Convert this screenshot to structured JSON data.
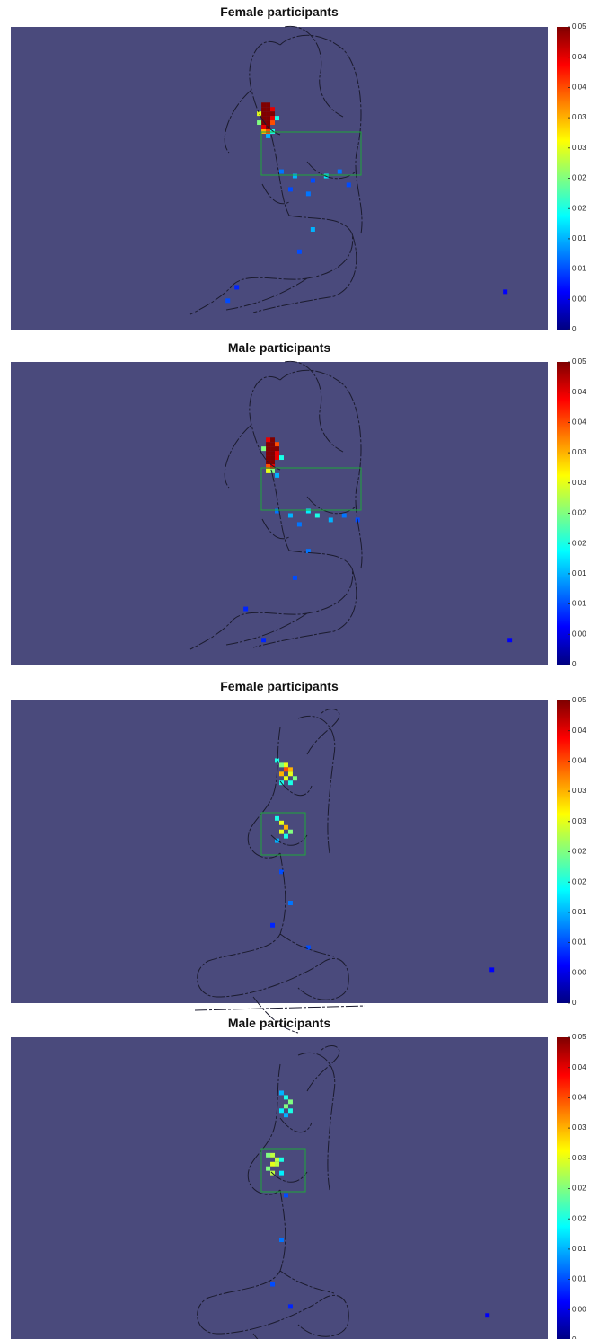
{
  "chart_data": [
    {
      "type": "heatmap",
      "title": "Female participants",
      "colormap": "jet",
      "background_color": "#4a4a7c",
      "xlim": [
        0,
        120
      ],
      "ylim": [
        68,
        0
      ],
      "clim": [
        0,
        0.05
      ],
      "cticks": [
        0,
        {
          "value": 0.005,
          "label": "0.00"
        },
        0.01,
        {
          "value": 0.015,
          "label": "0.01"
        },
        0.02,
        {
          "value": 0.025,
          "label": "0.02"
        },
        0.03,
        {
          "value": 0.035,
          "label": "0.03"
        },
        0.04,
        {
          "value": 0.045,
          "label": "0.04"
        },
        0.05
      ],
      "cells": [
        [
          56,
          17,
          0.05
        ],
        [
          57,
          17,
          0.05
        ],
        [
          56,
          18,
          0.05
        ],
        [
          57,
          18,
          0.05
        ],
        [
          58,
          18,
          0.045
        ],
        [
          56,
          19,
          0.05
        ],
        [
          57,
          19,
          0.05
        ],
        [
          58,
          19,
          0.05
        ],
        [
          56,
          20,
          0.05
        ],
        [
          57,
          20,
          0.05
        ],
        [
          58,
          20,
          0.045
        ],
        [
          56,
          21,
          0.05
        ],
        [
          57,
          21,
          0.05
        ],
        [
          58,
          21,
          0.04
        ],
        [
          56,
          22,
          0.045
        ],
        [
          57,
          22,
          0.05
        ],
        [
          56,
          23,
          0.035
        ],
        [
          57,
          23,
          0.04
        ],
        [
          55,
          19,
          0.03
        ],
        [
          55,
          21,
          0.025
        ],
        [
          59,
          20,
          0.02
        ],
        [
          58,
          23,
          0.02
        ],
        [
          57,
          24,
          0.015
        ],
        [
          60,
          32,
          0.012
        ],
        [
          63,
          33,
          0.015
        ],
        [
          67,
          34,
          0.01
        ],
        [
          70,
          33,
          0.018
        ],
        [
          73,
          32,
          0.012
        ],
        [
          75,
          35,
          0.01
        ],
        [
          66,
          37,
          0.012
        ],
        [
          62,
          36,
          0.01
        ],
        [
          67,
          45,
          0.015
        ],
        [
          64,
          50,
          0.01
        ],
        [
          50,
          58,
          0.008
        ],
        [
          48,
          61,
          0.01
        ],
        [
          110,
          59,
          0.006
        ]
      ]
    },
    {
      "type": "heatmap",
      "title": "Male participants",
      "colormap": "jet",
      "background_color": "#4a4a7c",
      "xlim": [
        0,
        120
      ],
      "ylim": [
        68,
        0
      ],
      "clim": [
        0,
        0.05
      ],
      "cticks": [
        0,
        {
          "value": 0.005,
          "label": "0.00"
        },
        0.01,
        {
          "value": 0.015,
          "label": "0.01"
        },
        0.02,
        {
          "value": 0.025,
          "label": "0.02"
        },
        0.03,
        {
          "value": 0.035,
          "label": "0.03"
        },
        0.04,
        {
          "value": 0.045,
          "label": "0.04"
        },
        0.05
      ],
      "cells": [
        [
          57,
          17,
          0.045
        ],
        [
          58,
          17,
          0.05
        ],
        [
          57,
          18,
          0.05
        ],
        [
          58,
          18,
          0.05
        ],
        [
          59,
          18,
          0.04
        ],
        [
          57,
          19,
          0.05
        ],
        [
          58,
          19,
          0.05
        ],
        [
          59,
          19,
          0.05
        ],
        [
          57,
          20,
          0.05
        ],
        [
          58,
          20,
          0.05
        ],
        [
          59,
          20,
          0.045
        ],
        [
          57,
          21,
          0.05
        ],
        [
          58,
          21,
          0.05
        ],
        [
          59,
          21,
          0.045
        ],
        [
          57,
          22,
          0.05
        ],
        [
          58,
          22,
          0.05
        ],
        [
          57,
          23,
          0.04
        ],
        [
          58,
          23,
          0.045
        ],
        [
          57,
          24,
          0.03
        ],
        [
          58,
          24,
          0.025
        ],
        [
          56,
          19,
          0.025
        ],
        [
          60,
          21,
          0.02
        ],
        [
          59,
          25,
          0.015
        ],
        [
          59,
          33,
          0.012
        ],
        [
          62,
          34,
          0.015
        ],
        [
          66,
          33,
          0.018
        ],
        [
          68,
          34,
          0.02
        ],
        [
          71,
          35,
          0.015
        ],
        [
          74,
          34,
          0.012
        ],
        [
          77,
          35,
          0.01
        ],
        [
          64,
          36,
          0.012
        ],
        [
          66,
          42,
          0.012
        ],
        [
          63,
          48,
          0.01
        ],
        [
          52,
          55,
          0.008
        ],
        [
          56,
          62,
          0.008
        ],
        [
          111,
          62,
          0.006
        ]
      ]
    },
    {
      "type": "heatmap",
      "title": "Female participants",
      "colormap": "jet",
      "background_color": "#4a4a7c",
      "xlim": [
        0,
        120
      ],
      "ylim": [
        68,
        0
      ],
      "clim": [
        0,
        0.05
      ],
      "cticks": [
        0,
        {
          "value": 0.005,
          "label": "0.00"
        },
        0.01,
        {
          "value": 0.015,
          "label": "0.01"
        },
        0.02,
        {
          "value": 0.025,
          "label": "0.02"
        },
        0.03,
        {
          "value": 0.035,
          "label": "0.03"
        },
        0.04,
        {
          "value": 0.045,
          "label": "0.04"
        },
        0.05
      ],
      "cells": [
        [
          59,
          13,
          0.02
        ],
        [
          60,
          14,
          0.025
        ],
        [
          61,
          14,
          0.03
        ],
        [
          62,
          15,
          0.035
        ],
        [
          61,
          15,
          0.04
        ],
        [
          60,
          16,
          0.035
        ],
        [
          62,
          16,
          0.03
        ],
        [
          61,
          17,
          0.03
        ],
        [
          63,
          17,
          0.025
        ],
        [
          60,
          18,
          0.02
        ],
        [
          62,
          18,
          0.02
        ],
        [
          59,
          26,
          0.02
        ],
        [
          60,
          27,
          0.03
        ],
        [
          61,
          28,
          0.035
        ],
        [
          60,
          29,
          0.03
        ],
        [
          62,
          29,
          0.025
        ],
        [
          61,
          30,
          0.02
        ],
        [
          59,
          31,
          0.015
        ],
        [
          60,
          38,
          0.01
        ],
        [
          62,
          45,
          0.012
        ],
        [
          58,
          50,
          0.008
        ],
        [
          66,
          55,
          0.01
        ],
        [
          107,
          60,
          0.006
        ]
      ]
    },
    {
      "type": "heatmap",
      "title": "Male participants",
      "colormap": "jet",
      "background_color": "#4a4a7c",
      "xlim": [
        0,
        120
      ],
      "ylim": [
        68,
        0
      ],
      "clim": [
        0,
        0.05
      ],
      "cticks": [
        0,
        {
          "value": 0.005,
          "label": "0.00"
        },
        0.01,
        {
          "value": 0.015,
          "label": "0.01"
        },
        0.02,
        {
          "value": 0.025,
          "label": "0.02"
        },
        0.03,
        {
          "value": 0.035,
          "label": "0.03"
        },
        0.04,
        {
          "value": 0.045,
          "label": "0.04"
        },
        0.05
      ],
      "cells": [
        [
          60,
          12,
          0.015
        ],
        [
          61,
          13,
          0.02
        ],
        [
          62,
          14,
          0.025
        ],
        [
          61,
          15,
          0.025
        ],
        [
          62,
          16,
          0.02
        ],
        [
          60,
          16,
          0.018
        ],
        [
          61,
          17,
          0.015
        ],
        [
          57,
          26,
          0.025
        ],
        [
          58,
          26,
          0.028
        ],
        [
          59,
          27,
          0.028
        ],
        [
          58,
          28,
          0.03
        ],
        [
          59,
          28,
          0.028
        ],
        [
          57,
          29,
          0.025
        ],
        [
          58,
          30,
          0.028
        ],
        [
          60,
          27,
          0.02
        ],
        [
          60,
          30,
          0.018
        ],
        [
          61,
          35,
          0.01
        ],
        [
          60,
          45,
          0.012
        ],
        [
          58,
          55,
          0.01
        ],
        [
          62,
          60,
          0.008
        ],
        [
          106,
          62,
          0.006
        ]
      ]
    }
  ]
}
